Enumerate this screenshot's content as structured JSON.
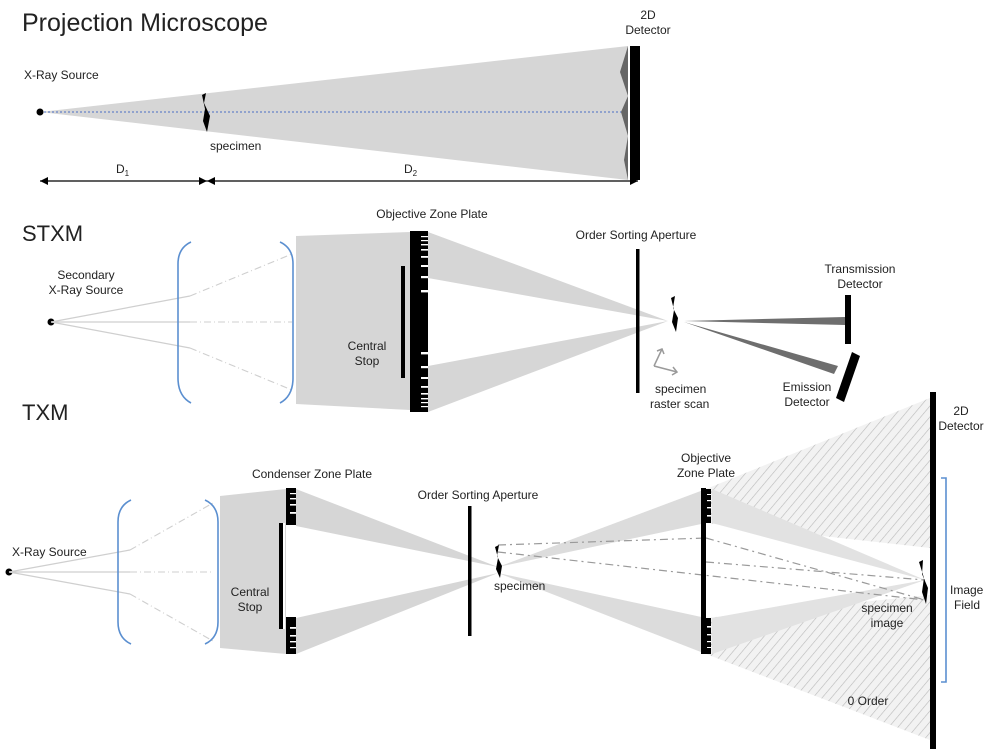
{
  "projection": {
    "title": "Projection Microscope",
    "source_label": "X-Ray Source",
    "specimen_label": "specimen",
    "detector_label_1": "2D",
    "detector_label_2": "Detector",
    "d1_main": "D",
    "d1_sub": "1",
    "d2_main": "D",
    "d2_sub": "2"
  },
  "stxm": {
    "title": "STXM",
    "source_label_1": "Secondary",
    "source_label_2": "X-Ray Source",
    "zone_plate_label": "Objective  Zone  Plate",
    "central_stop_1": "Central",
    "central_stop_2": "Stop",
    "osa_label": "Order Sorting Aperture",
    "transmission_1": "Transmission",
    "transmission_2": "Detector",
    "emission_1": "Emission",
    "emission_2": "Detector",
    "specimen_1": "specimen",
    "specimen_2": "raster scan"
  },
  "txm": {
    "title": "TXM",
    "source_label": "X-Ray Source",
    "condenser_label": "Condenser  Zone  Plate",
    "central_stop_1": "Central",
    "central_stop_2": "Stop",
    "osa_label": "Order Sorting Aperture",
    "specimen_label": "specimen",
    "objective_1": "Objective",
    "objective_2": "Zone Plate",
    "detector_1": "2D",
    "detector_2": "Detector",
    "image_field_1": "Image",
    "image_field_2": "Field",
    "specimen_image_1": "specimen",
    "specimen_image_2": "image",
    "zero_order": "0 Order"
  },
  "colors": {
    "beam": "#d6d6d6",
    "axis": "#4a6fc4",
    "bracket": "#5b8fd0",
    "ink": "#000000"
  }
}
